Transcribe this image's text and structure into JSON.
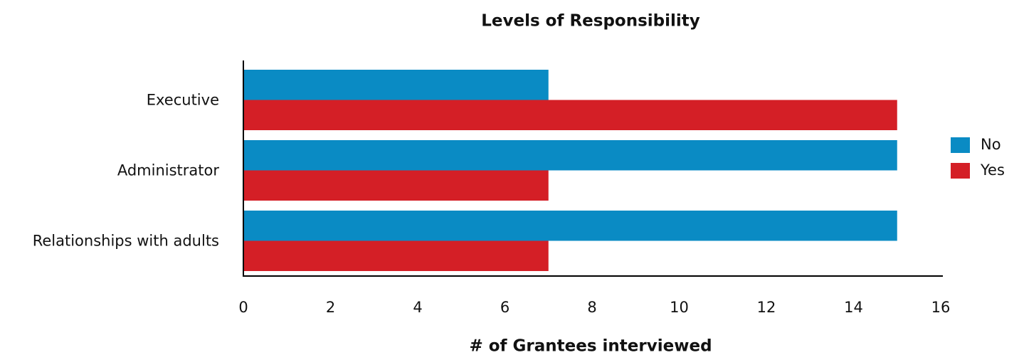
{
  "chart_data": {
    "type": "bar",
    "orientation": "horizontal",
    "title": "Levels of Responsibility",
    "xlabel": "# of Grantees interviewed",
    "categories": [
      "Executive",
      "Administrator",
      "Relationships with adults"
    ],
    "series": [
      {
        "name": "No",
        "color": "#0a8bc4",
        "values": [
          7,
          15,
          15
        ]
      },
      {
        "name": "Yes",
        "color": "#d41f26",
        "values": [
          15,
          7,
          7
        ]
      }
    ],
    "xlim": [
      0,
      16
    ],
    "xticks": [
      0,
      2,
      4,
      6,
      8,
      10,
      12,
      14,
      16
    ],
    "legend": "right"
  }
}
